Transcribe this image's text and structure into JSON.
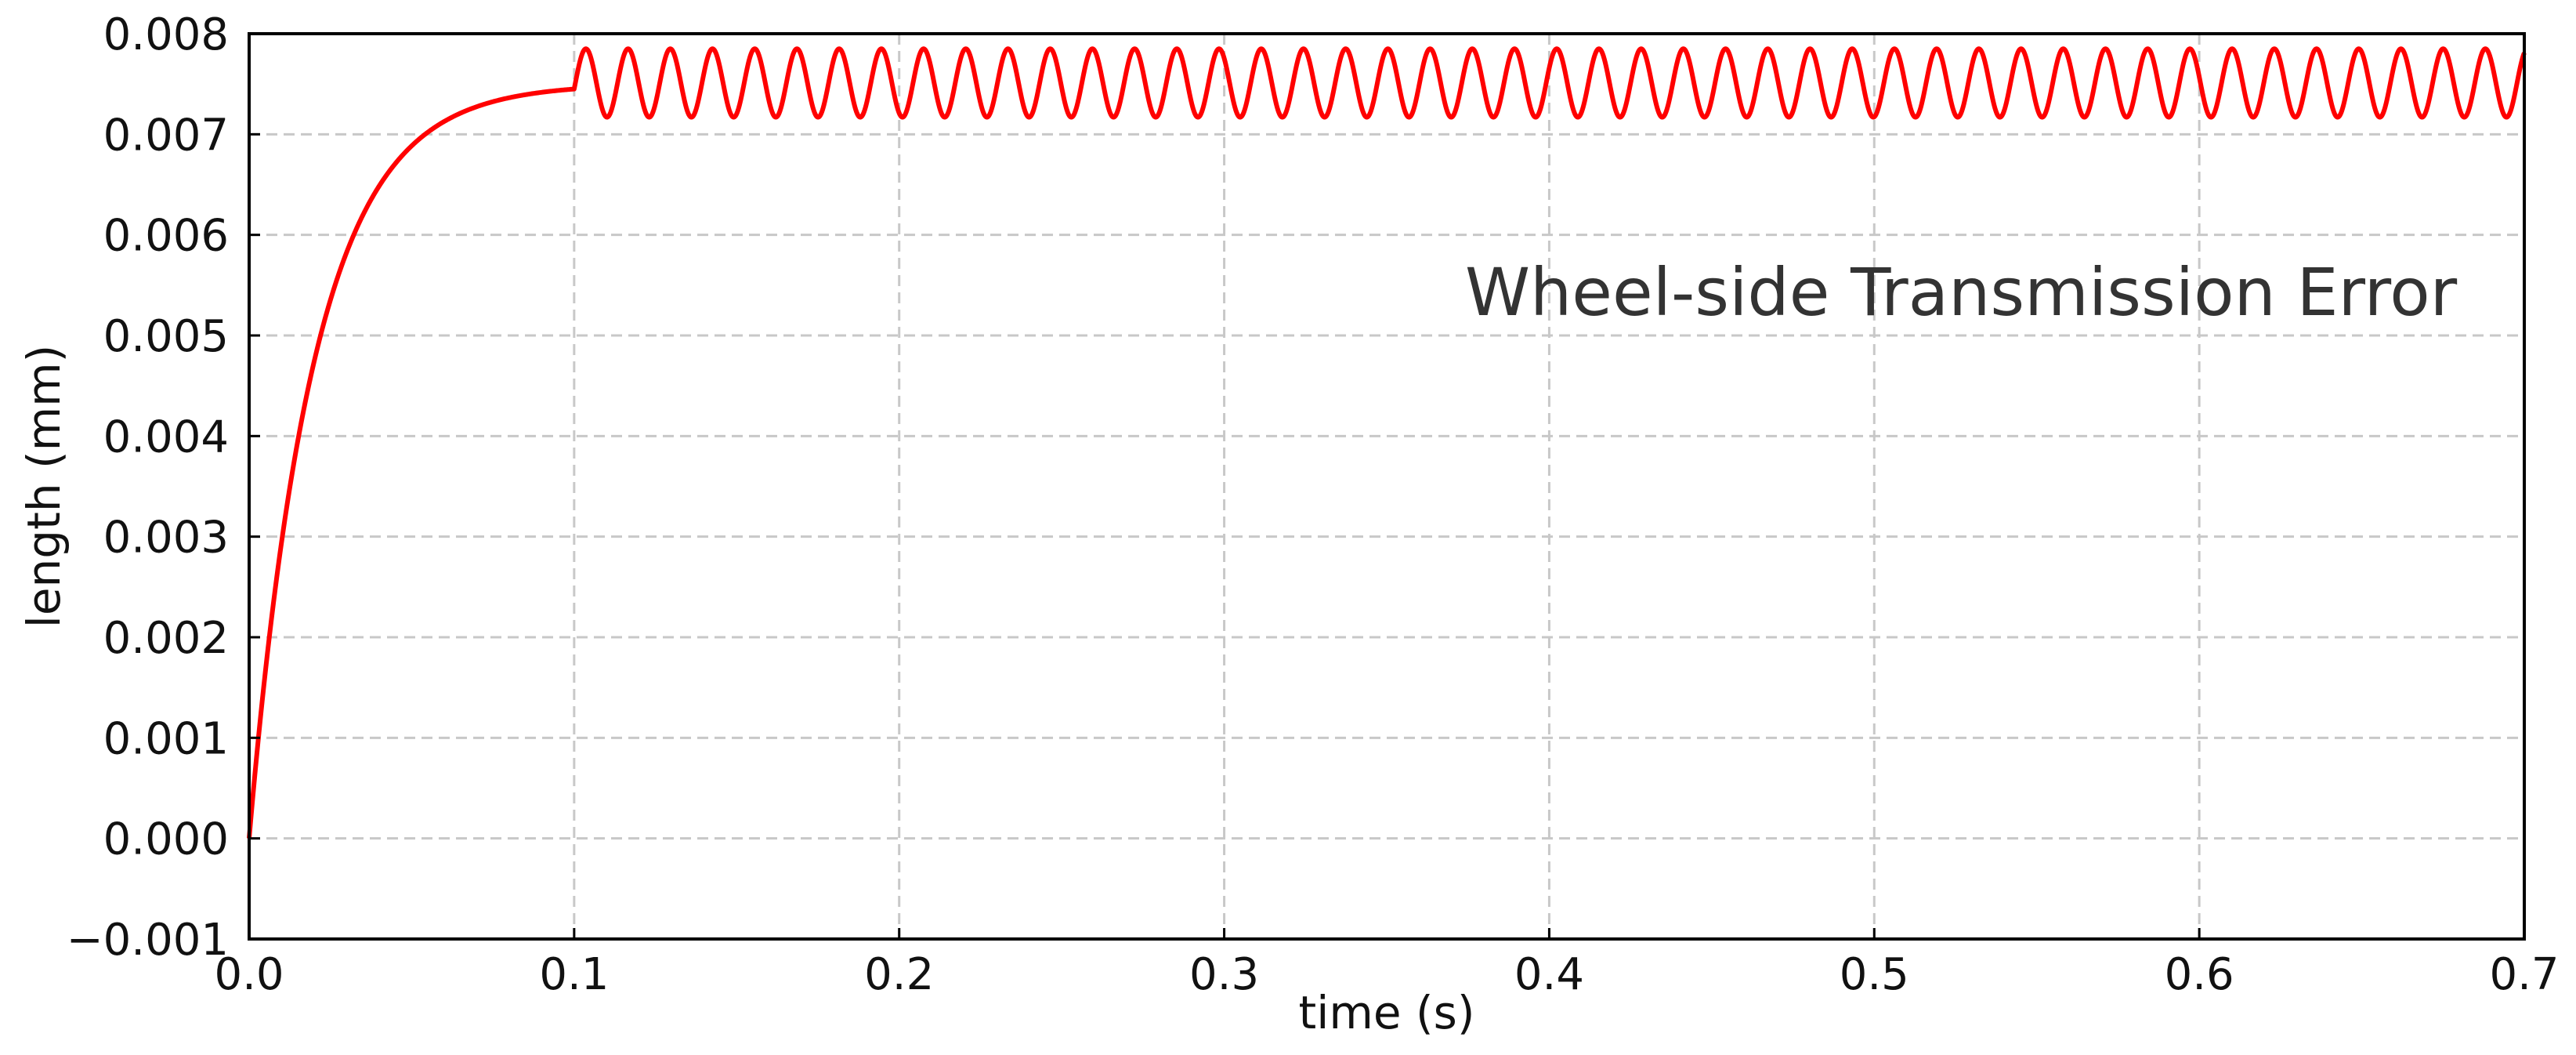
{
  "chart_data": {
    "type": "line",
    "title": "",
    "xlabel": "time (s)",
    "ylabel": "length (mm)",
    "xlim": [
      0.0,
      0.7
    ],
    "ylim": [
      -0.001,
      0.008
    ],
    "grid": true,
    "xticks": [
      0.0,
      0.1,
      0.2,
      0.3,
      0.4,
      0.5,
      0.6,
      0.7
    ],
    "xtick_labels": [
      "0.0",
      "0.1",
      "0.2",
      "0.3",
      "0.4",
      "0.5",
      "0.6",
      "0.7"
    ],
    "yticks": [
      -0.001,
      0.0,
      0.001,
      0.002,
      0.003,
      0.004,
      0.005,
      0.006,
      0.007,
      0.008
    ],
    "ytick_labels": [
      "−0.001",
      "0.000",
      "0.001",
      "0.002",
      "0.003",
      "0.004",
      "0.005",
      "0.006",
      "0.007",
      "0.008"
    ],
    "annotation": "Wheel-side Transmission Error",
    "series": [
      {
        "color": "#ff0000",
        "rise_phase": {
          "t_start": 0.0,
          "t_end": 0.1,
          "y_start": 0.0,
          "y_end": 0.00745,
          "time_constant": 0.02
        },
        "oscillation_phase": {
          "t_start": 0.1,
          "t_end": 0.7,
          "y_max": 0.00785,
          "y_min": 0.00717,
          "frequency_hz": 77
        }
      }
    ]
  }
}
